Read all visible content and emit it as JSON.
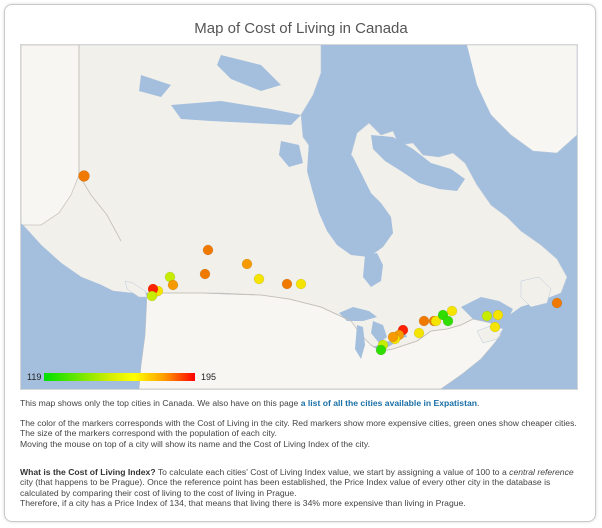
{
  "title": "Map of Cost of Living in Canada",
  "legend": {
    "min": "119",
    "max": "195"
  },
  "intro": {
    "text": "This map shows only the top cities in Canada. We also have on this page ",
    "link": "a list of all the cities available in Expatistan",
    "end": "."
  },
  "explanation": {
    "line1": "The color of the markers corresponds with the Cost of Living in the city. Red markers show more expensive cities, green ones show cheaper cities.",
    "line2": "The size of the markers correspond with the population of each city.",
    "line3": "Moving the mouse on top of a city will show its name and the Cost of Living Index of the city."
  },
  "question": {
    "heading": "What is the Cost of Living Index?",
    "text1": " To calculate each cities' Cost of Living Index value, we start by assigning a value of 100 to a ",
    "emph": "central reference",
    "text2": " city (that happens to be Prague). Once the reference point has been established, the Price Index value of every other city in the database is calculated by comparing their cost of living to the cost of living in Prague.",
    "line2": "Therefore, if a city has a Price Index of 134, that means that living there is 34% more expensive than living in Prague."
  },
  "colors": {
    "water": "#a4bfdd",
    "land": "#f2f0eb",
    "us_land": "#f7f6f2",
    "border": "#c9c4bd",
    "red": "#ff2200",
    "orange": "#f07a00",
    "light_orange": "#f59a00",
    "yellow": "#f4e400",
    "yellow_green": "#c8ec00",
    "green": "#30dd00"
  },
  "markers": [
    {
      "color_key": "orange"
    },
    {
      "color_key": "orange"
    },
    {
      "color_key": "orange"
    },
    {
      "color_key": "light_orange"
    },
    {
      "color_key": "yellow"
    },
    {
      "color_key": "yellow_green"
    },
    {
      "color_key": "light_orange"
    },
    {
      "color_key": "yellow_green"
    },
    {
      "color_key": "yellow"
    },
    {
      "color_key": "red"
    },
    {
      "color_key": "yellow_green"
    },
    {
      "color_key": "orange"
    },
    {
      "color_key": "yellow"
    },
    {
      "color_key": "orange"
    },
    {
      "color_key": "red"
    },
    {
      "color_key": "light_orange"
    },
    {
      "color_key": "yellow"
    },
    {
      "color_key": "light_orange"
    },
    {
      "color_key": "yellow_green"
    },
    {
      "color_key": "green"
    },
    {
      "color_key": "yellow"
    },
    {
      "color_key": "orange"
    },
    {
      "color_key": "yellow"
    },
    {
      "color_key": "green"
    },
    {
      "color_key": "green"
    },
    {
      "color_key": "yellow"
    },
    {
      "color_key": "yellow_green"
    },
    {
      "color_key": "yellow"
    },
    {
      "color_key": "yellow"
    },
    {
      "color_key": "orange"
    }
  ]
}
